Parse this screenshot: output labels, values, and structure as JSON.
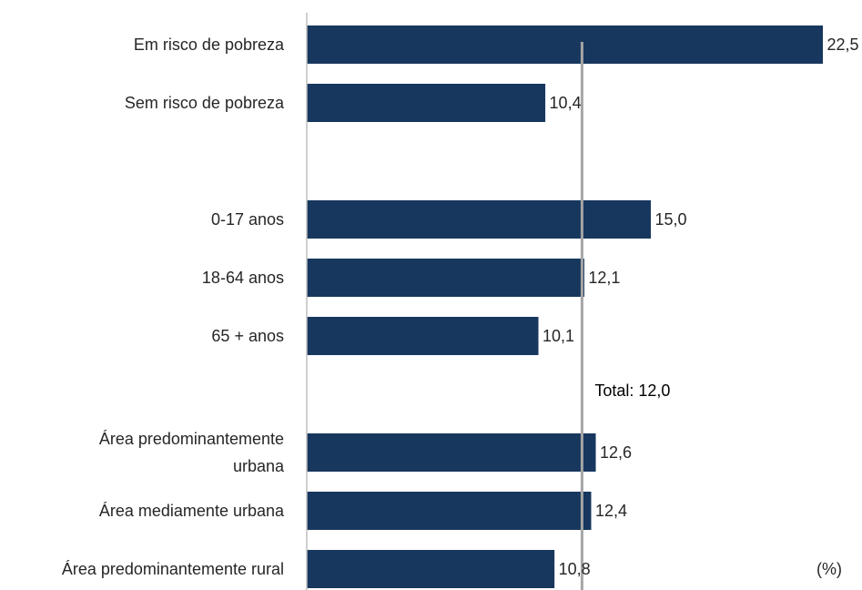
{
  "chart_data": {
    "type": "bar",
    "orientation": "horizontal",
    "categories": [
      [
        "Em risco de pobreza"
      ],
      [
        "Sem risco de pobreza"
      ],
      [
        "0-17 anos"
      ],
      [
        "18-64 anos"
      ],
      [
        "65 + anos"
      ],
      [
        "Área predominantemente",
        "urbana"
      ],
      [
        "Área mediamente urbana"
      ],
      [
        "Área predominantemente rural"
      ]
    ],
    "values": [
      22.5,
      10.4,
      15.0,
      12.1,
      10.1,
      12.6,
      12.4,
      10.8
    ],
    "value_labels": [
      "22,5",
      "10,4",
      "15,0",
      "12,1",
      "10,1",
      "12,6",
      "12,4",
      "10,8"
    ],
    "reference_line": {
      "value": 12.0,
      "label": "Total: 12,0",
      "color": "#a6a6a6"
    },
    "unit_label": "(%)",
    "bar_color": "#17375e",
    "axis_color": "#bfbfbf",
    "xlim": [
      0,
      22.5
    ],
    "grid": false,
    "legend": "none"
  }
}
